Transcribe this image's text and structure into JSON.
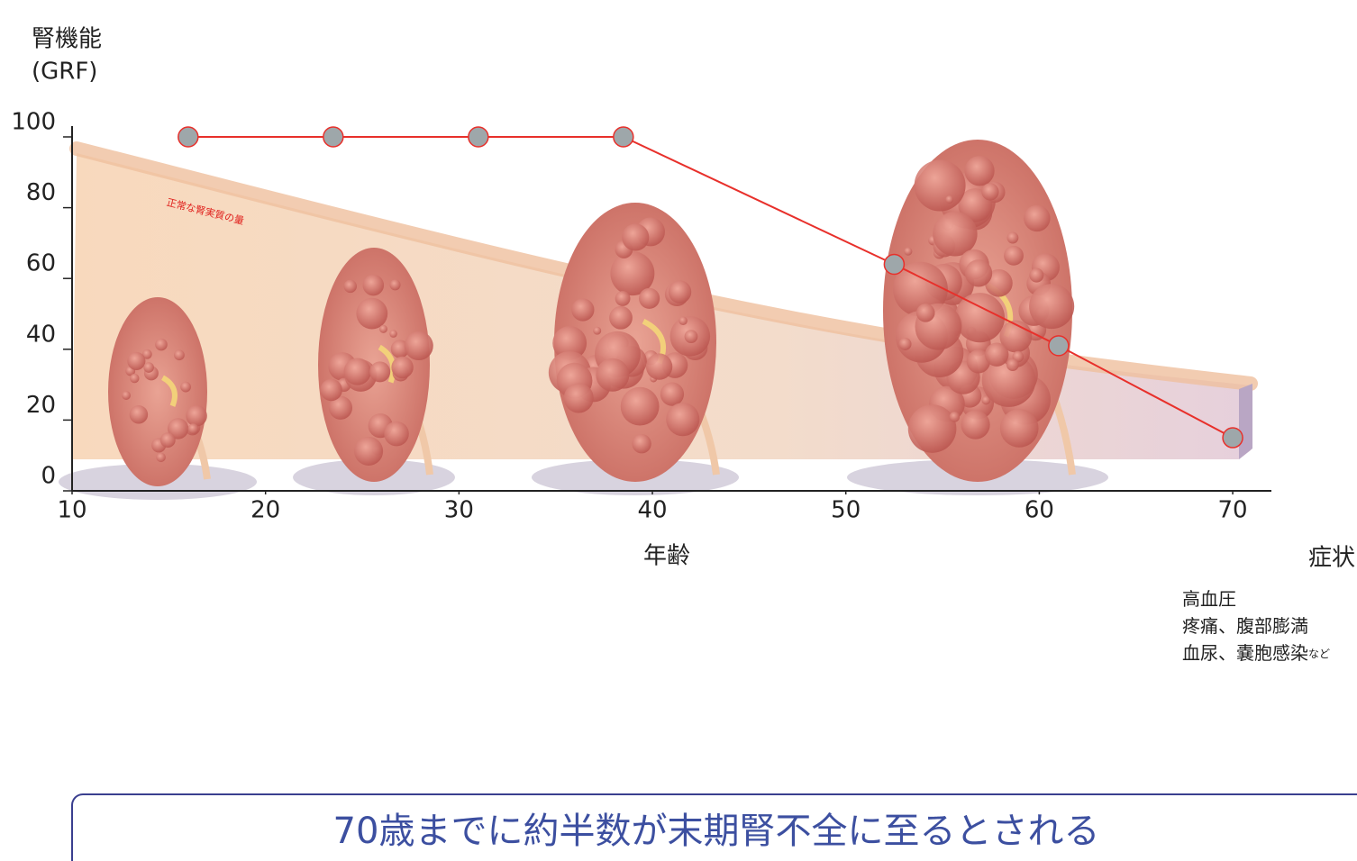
{
  "chart_data": {
    "type": "line",
    "y_label": "腎機能",
    "y_label_unit": "(GRF)",
    "x_label": "年齢",
    "annotation": "正常な腎実質の量",
    "x": [
      16,
      23.5,
      31,
      38.5,
      52.5,
      61,
      70
    ],
    "series": [
      {
        "color": "#e8302b",
        "values": [
          100,
          100,
          100,
          100,
          64,
          41,
          15
        ]
      }
    ],
    "xlim": [
      10,
      72
    ],
    "xticks": [
      10,
      20,
      30,
      40,
      50,
      60,
      70
    ],
    "ylim": [
      0,
      100
    ],
    "yticks": [
      0,
      20,
      40,
      60,
      80,
      100
    ]
  },
  "symptoms": {
    "title": "症状",
    "items": [
      {
        "text": "高血圧",
        "color": "#4d78a5"
      },
      {
        "text": "疼痛、腹部膨満",
        "color": "#a2634c"
      },
      {
        "text": "血尿、嚢胞感染",
        "suffix": "など",
        "color": "#dc4336"
      }
    ]
  },
  "note": "70歳までに約半数が末期腎不全に至るとされる"
}
